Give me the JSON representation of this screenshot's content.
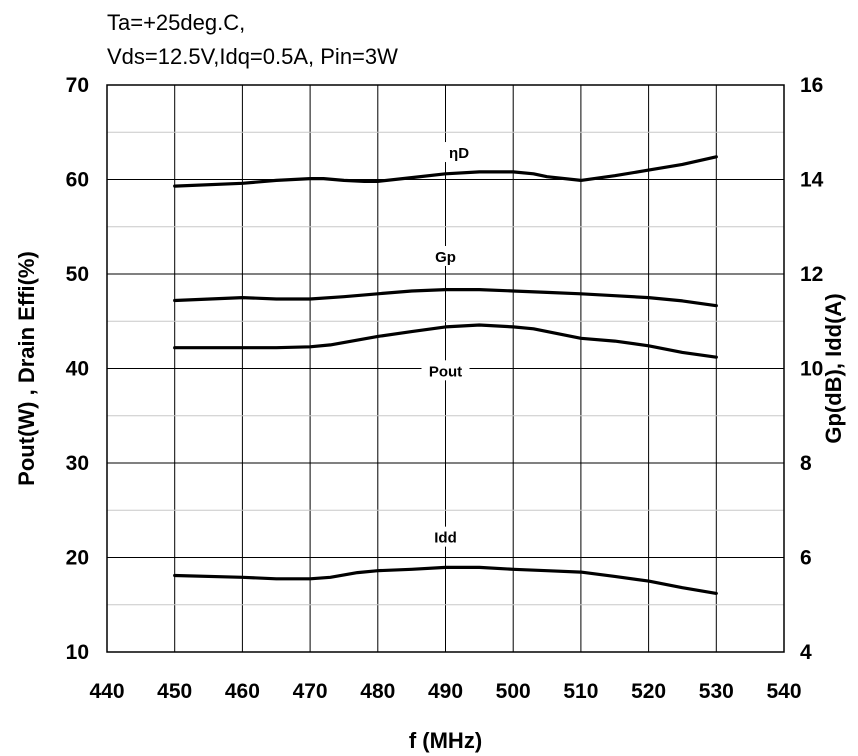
{
  "conditions": {
    "line1": "Ta=+25deg.C,",
    "line2": "Vds=12.5V,Idq=0.5A, Pin=3W"
  },
  "chart_data": {
    "type": "line",
    "title": "",
    "xlabel": "f  (MHz)",
    "ylabel_left": "Pout(W) , Drain Effi(%)",
    "ylabel_right": "Gp(dB), Idd(A)",
    "xlim": [
      440,
      540
    ],
    "ylim_left": [
      10,
      70
    ],
    "ylim_right": [
      4,
      16
    ],
    "x_ticks": [
      440,
      450,
      460,
      470,
      480,
      490,
      500,
      510,
      520,
      530,
      540
    ],
    "y_left_ticks": [
      10,
      20,
      30,
      40,
      50,
      60,
      70
    ],
    "y_right_ticks": [
      4,
      6,
      8,
      10,
      12,
      14,
      16
    ],
    "grid": true,
    "line_color": "#000000",
    "series": [
      {
        "name": "ηD",
        "axis": "left",
        "x": [
          450,
          460,
          465,
          470,
          472,
          475,
          478,
          480,
          485,
          490,
          495,
          500,
          503,
          505,
          510,
          515,
          520,
          525,
          530
        ],
        "values": [
          59.3,
          59.6,
          59.9,
          60.1,
          60.1,
          59.9,
          59.8,
          59.8,
          60.2,
          60.6,
          60.8,
          60.8,
          60.6,
          60.3,
          59.9,
          60.4,
          61.0,
          61.6,
          62.4
        ]
      },
      {
        "name": "Gp",
        "axis": "right",
        "x": [
          450,
          460,
          465,
          470,
          475,
          480,
          485,
          490,
          495,
          500,
          505,
          510,
          515,
          520,
          525,
          530
        ],
        "values": [
          11.44,
          11.5,
          11.47,
          11.47,
          11.52,
          11.58,
          11.64,
          11.67,
          11.67,
          11.64,
          11.61,
          11.58,
          11.54,
          11.5,
          11.43,
          11.33
        ]
      },
      {
        "name": "Pout",
        "axis": "left",
        "x": [
          450,
          460,
          465,
          470,
          473,
          480,
          485,
          490,
          495,
          500,
          503,
          510,
          515,
          520,
          525,
          530
        ],
        "values": [
          42.2,
          42.2,
          42.2,
          42.3,
          42.5,
          43.4,
          43.9,
          44.4,
          44.6,
          44.4,
          44.2,
          43.2,
          42.9,
          42.4,
          41.7,
          41.2
        ]
      },
      {
        "name": "Idd",
        "axis": "right",
        "x": [
          450,
          460,
          465,
          470,
          473,
          477,
          480,
          485,
          490,
          495,
          500,
          505,
          510,
          515,
          520,
          525,
          530
        ],
        "values": [
          5.62,
          5.58,
          5.55,
          5.55,
          5.58,
          5.68,
          5.72,
          5.75,
          5.79,
          5.79,
          5.75,
          5.72,
          5.69,
          5.6,
          5.5,
          5.36,
          5.24
        ]
      }
    ],
    "series_labels": [
      {
        "text": "ηD",
        "x": 492,
        "y": 62.8
      },
      {
        "text": "Gp",
        "x": 490,
        "y": 51.8
      },
      {
        "text": "Pout",
        "x": 490,
        "y": 39.7
      },
      {
        "text": "Idd",
        "x": 490,
        "y": 22.1
      }
    ]
  }
}
